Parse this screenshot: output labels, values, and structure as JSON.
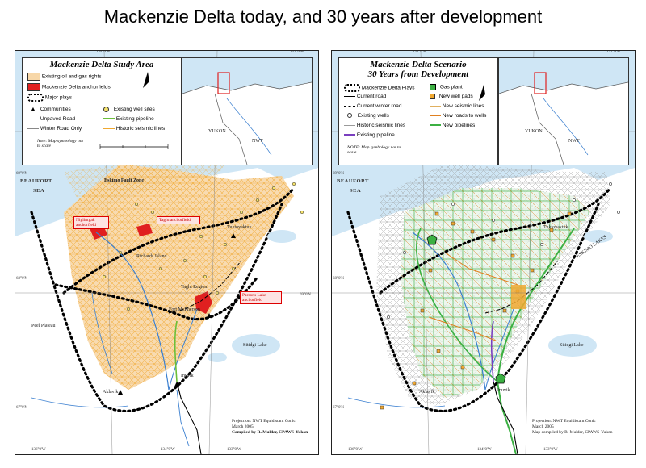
{
  "page_title": "Mackenzie Delta today, and 30 years after development",
  "left_map": {
    "legend": {
      "title": "Mackenzie Delta Study Area",
      "items": {
        "oil_gas_rights": "Existing oil  and  gas rights",
        "anchorfields": "Mackenzie Delta anchorfields",
        "major_plays": "Major plays",
        "communities": "Communities",
        "well_sites": "Existing well sites",
        "unpaved_road": "Unpaved Road",
        "existing_pipeline": "Existing pipeline",
        "winter_road": "Winter Road Only",
        "seismic_lines": "Historic seismic lines"
      },
      "note": "Note: Map symbology not to scale"
    },
    "inset_labels": {
      "yukon": "YUKON",
      "nwt": "NWT"
    },
    "labels": {
      "beaufort": "BEAUFORT",
      "sea": "SEA",
      "fault_zone": "Eskimo Fault Zone",
      "tuktoyaktuk": "Tuktoyaktuk",
      "inuvik": "Inuvik",
      "aklavik": "Aklavik",
      "fort_mcpherson": "Fort McPherson",
      "taglu_region": "Taglu Region",
      "richards_island": "Richards Island",
      "peel_region": "Peel Plateau",
      "sitidgi_lake": "Sitidgi Lake"
    },
    "callouts": {
      "niglintgak": "Niglintgak anchorfield",
      "taglu": "Taglu anchorfield",
      "parsons": "Parsons Lake anchorfield"
    },
    "coords": {
      "top_left": "134°0'W",
      "top_right": "132°0'W",
      "bottom_left": "136°0'W",
      "bottom_mid": "134°0'W",
      "bottom_right": "133°0'W",
      "lat_top": "69°0'N",
      "lat_mid": "68°0'N",
      "lat_low": "67°0'N",
      "lat_right": "69°0'N"
    },
    "credit": {
      "line1": "Projection: NWT Equidistant Conic",
      "line2": "March 2005",
      "line3": "Compiled by R. Mulder, CPAWS-Yukon"
    }
  },
  "right_map": {
    "legend": {
      "title_line1": "Mackenzie Delta Scenario",
      "title_line2": "30 Years from Development",
      "items": {
        "delta_plays": "Mackenzie Delta Plays",
        "gas_plant": "Gas plant",
        "current_road": "Current road",
        "new_well_pads": "New well pads",
        "current_winter_road": "Current winter road",
        "new_seismic_lines": "New seismic lines",
        "existing_wells": "Existing wells",
        "new_roads_to_wells": "New roads to wells",
        "historic_seismic": "Historic seismic lines",
        "new_pipelines": "New pipelines",
        "existing_pipeline": "Existing pipeline"
      },
      "note": "NOTE: Map symbology not to scale"
    },
    "inset_labels": {
      "yukon": "YUKON",
      "nwt": "NWT"
    },
    "labels": {
      "beaufort": "BEAUFORT",
      "sea": "SEA",
      "tuktoyaktuk": "Tuktoyaktuk",
      "inuvik": "Inuvik",
      "aklavik": "Aklavik",
      "sitidgi_lake": "Sitidgi Lake",
      "eskimo_lakes": "ESKIMO LAKES"
    },
    "coords": {
      "top_left": "134°0'W",
      "top_right": "132°0'W",
      "bottom_left": "136°0'W",
      "bottom_mid": "134°0'W",
      "bottom_right": "133°0'W",
      "lat_top": "69°0'N",
      "lat_mid": "68°0'N",
      "lat_low": "67°0'N"
    },
    "credit": {
      "line1": "Projection: NWT Equidistant Conic",
      "line2": "March 2005",
      "line3": "Map compiled by R. Mulder, CPAWS-Yukon"
    }
  },
  "colors": {
    "ocean": "#cfe6f5",
    "land": "#ffffff",
    "rights": "#f7d7a8",
    "seismic": "#f0a830",
    "anchorfield": "#e02020",
    "river": "#3a7fd0",
    "new_pipeline": "#3cb043",
    "pipeline_existing": "#7a3fbf",
    "new_road": "#e08020"
  }
}
